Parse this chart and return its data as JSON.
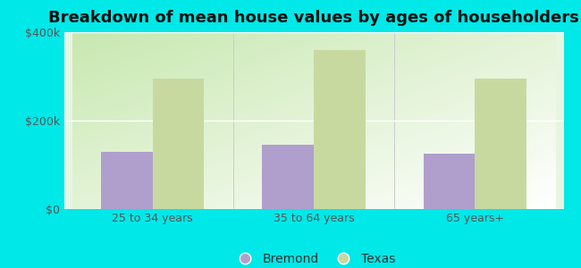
{
  "title": "Breakdown of mean house values by ages of householders",
  "categories": [
    "25 to 34 years",
    "35 to 64 years",
    "65 years+"
  ],
  "bremond_values": [
    130000,
    145000,
    125000
  ],
  "texas_values": [
    295000,
    360000,
    295000
  ],
  "bremond_color": "#b09fcc",
  "texas_color": "#c8d9a0",
  "ylim": [
    0,
    400000
  ],
  "yticks": [
    0,
    200000,
    400000
  ],
  "ytick_labels": [
    "$0",
    "$200k",
    "$400k"
  ],
  "background_color": "#00e8e8",
  "legend_labels": [
    "Bremond",
    "Texas"
  ],
  "bar_width": 0.32,
  "title_fontsize": 13,
  "tick_fontsize": 9,
  "legend_fontsize": 10,
  "grid_color": "#ffffff",
  "divider_color": "#cccccc",
  "tick_color": "#555555"
}
